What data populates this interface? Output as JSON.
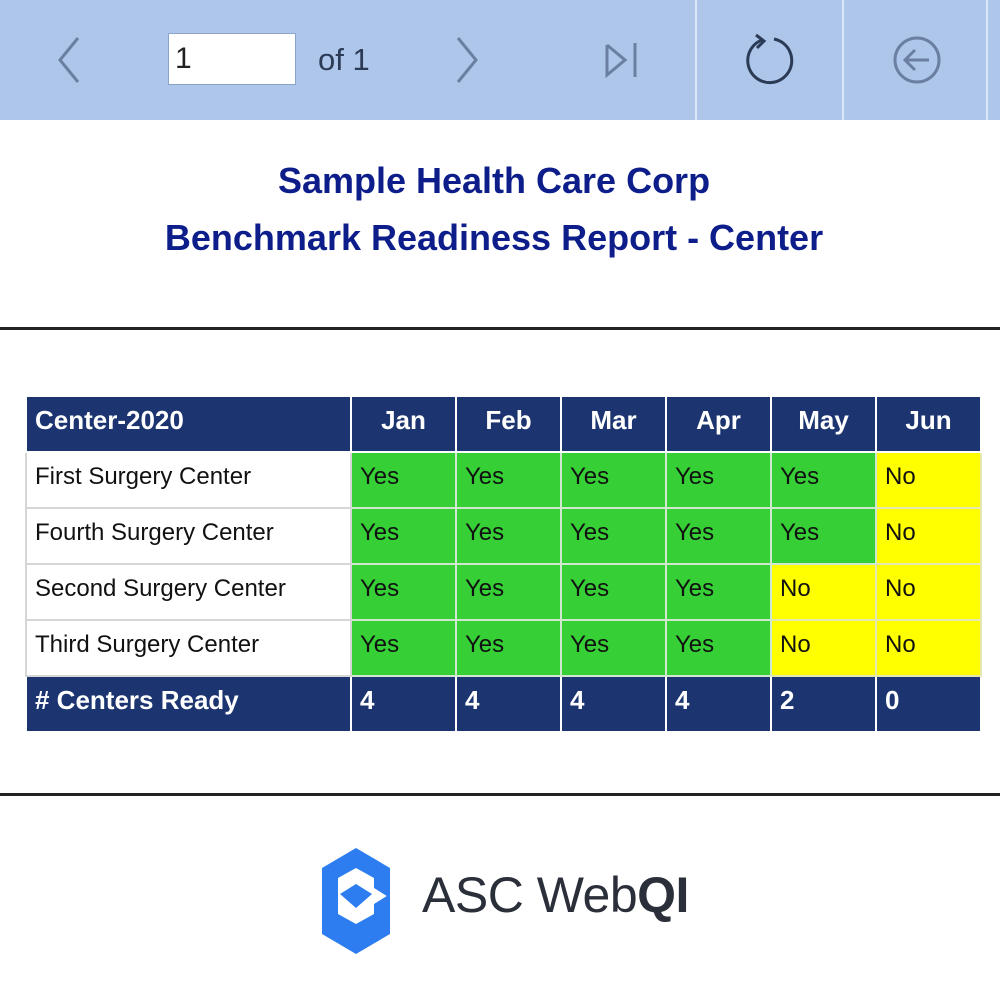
{
  "toolbar": {
    "page_value": "1",
    "page_of": "of 1",
    "icons": [
      "chevron-left-icon",
      "chevron-right-icon",
      "last-page-icon",
      "refresh-icon",
      "back-circle-icon"
    ]
  },
  "report": {
    "title_line1": "Sample Health Care Corp",
    "title_line2": "Benchmark Readiness Report - Center"
  },
  "table": {
    "headers": [
      "Center-2020",
      "Jan",
      "Feb",
      "Mar",
      "Apr",
      "May",
      "Jun"
    ],
    "rows": [
      {
        "name": "First Surgery Center",
        "values": [
          "Yes",
          "Yes",
          "Yes",
          "Yes",
          "Yes",
          "No"
        ]
      },
      {
        "name": "Fourth Surgery Center",
        "values": [
          "Yes",
          "Yes",
          "Yes",
          "Yes",
          "Yes",
          "No"
        ]
      },
      {
        "name": "Second Surgery Center",
        "values": [
          "Yes",
          "Yes",
          "Yes",
          "Yes",
          "No",
          "No"
        ]
      },
      {
        "name": "Third Surgery Center",
        "values": [
          "Yes",
          "Yes",
          "Yes",
          "Yes",
          "No",
          "No"
        ]
      }
    ],
    "footer": {
      "label": "# Centers Ready",
      "values": [
        "4",
        "4",
        "4",
        "4",
        "2",
        "0"
      ]
    }
  },
  "colors": {
    "toolbar_bg": "#adc6ea",
    "header_bg": "#1c3570",
    "yes_bg": "#36cf36",
    "no_bg": "#ffff00",
    "title_color": "#0d1e8a",
    "logo_blue": "#2d7df0"
  },
  "brand": {
    "asc": "ASC",
    "web": "Web",
    "qi": "QI"
  }
}
